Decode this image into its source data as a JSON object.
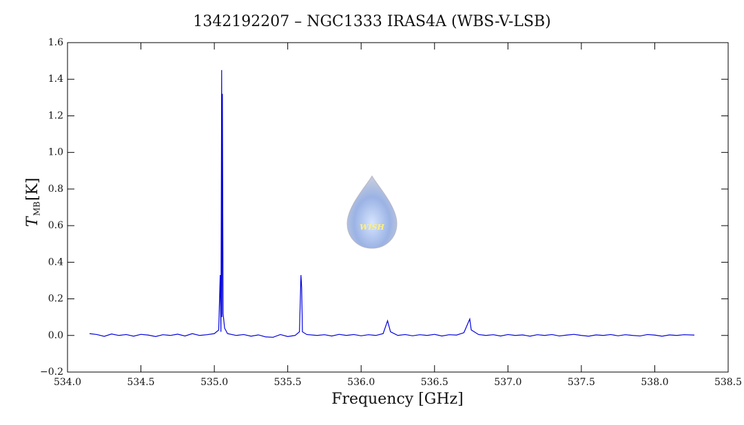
{
  "chart_data": {
    "type": "line",
    "title": "1342192207 – NGC1333 IRAS4A (WBS-V-LSB)",
    "xlabel": "Frequency [GHz]",
    "ylabel": {
      "symbol": "T",
      "subscript": "MB",
      "unit": "[K]"
    },
    "watermark": "WISH",
    "xlim": [
      534.0,
      538.5
    ],
    "xticks": [
      {
        "value": 534.0,
        "label": "534.0"
      },
      {
        "value": 534.5,
        "label": "534.5"
      },
      {
        "value": 535.0,
        "label": "535.0"
      },
      {
        "value": 535.5,
        "label": "535.5"
      },
      {
        "value": 536.0,
        "label": "536.0"
      },
      {
        "value": 536.5,
        "label": "536.5"
      },
      {
        "value": 537.0,
        "label": "537.0"
      },
      {
        "value": 537.5,
        "label": "537.5"
      },
      {
        "value": 538.0,
        "label": "538.0"
      },
      {
        "value": 538.5,
        "label": "538.5"
      }
    ],
    "ylim": [
      -0.2,
      1.6
    ],
    "yticks": [
      {
        "value": -0.2,
        "label": "−0.2"
      },
      {
        "value": 0,
        "label": "0.0"
      },
      0.2,
      0.4,
      0.6,
      0.8,
      {
        "value": 1,
        "label": "1.0"
      },
      1.2,
      1.4,
      1.6
    ],
    "series": [
      {
        "color": "#0000dd",
        "x": [
          534.15,
          534.2,
          534.25,
          534.3,
          534.35,
          534.4,
          534.45,
          534.5,
          534.55,
          534.6,
          534.65,
          534.7,
          534.75,
          534.8,
          534.85,
          534.9,
          534.95,
          535.0,
          535.03,
          535.04,
          535.045,
          535.05,
          535.052,
          535.055,
          535.06,
          535.07,
          535.09,
          535.15,
          535.2,
          535.25,
          535.3,
          535.35,
          535.4,
          535.45,
          535.5,
          535.55,
          535.58,
          535.59,
          535.595,
          535.6,
          535.63,
          535.7,
          535.75,
          535.8,
          535.85,
          535.9,
          535.95,
          536.0,
          536.05,
          536.1,
          536.15,
          536.18,
          536.2,
          536.25,
          536.3,
          536.35,
          536.4,
          536.45,
          536.5,
          536.55,
          536.6,
          536.65,
          536.7,
          536.74,
          536.75,
          536.8,
          536.85,
          536.9,
          536.95,
          537.0,
          537.05,
          537.1,
          537.15,
          537.2,
          537.25,
          537.3,
          537.35,
          537.4,
          537.45,
          537.5,
          537.55,
          537.6,
          537.65,
          537.7,
          537.75,
          537.8,
          537.85,
          537.9,
          537.95,
          538.0,
          538.05,
          538.1,
          538.15,
          538.2,
          538.27
        ],
        "values": [
          0.01,
          0.005,
          -0.005,
          0.008,
          0.0,
          0.005,
          -0.004,
          0.006,
          0.002,
          -0.006,
          0.004,
          0.0,
          0.007,
          -0.003,
          0.01,
          0.0,
          0.004,
          0.01,
          0.03,
          0.33,
          0.02,
          1.45,
          0.1,
          1.32,
          0.12,
          0.04,
          0.01,
          0.0,
          0.005,
          -0.004,
          0.003,
          -0.008,
          -0.01,
          0.005,
          -0.006,
          0.0,
          0.02,
          0.33,
          0.26,
          0.02,
          0.005,
          0.0,
          0.004,
          -0.003,
          0.006,
          0.0,
          0.005,
          -0.002,
          0.004,
          0.0,
          0.01,
          0.08,
          0.02,
          0.0,
          0.005,
          -0.002,
          0.004,
          0.0,
          0.006,
          -0.003,
          0.004,
          0.002,
          0.015,
          0.09,
          0.03,
          0.005,
          0.0,
          0.004,
          -0.003,
          0.005,
          0.0,
          0.003,
          -0.004,
          0.004,
          0.0,
          0.005,
          -0.003,
          0.002,
          0.006,
          0.0,
          -0.004,
          0.003,
          0.0,
          0.005,
          -0.002,
          0.004,
          0.0,
          -0.003,
          0.005,
          0.002,
          -0.004,
          0.003,
          0.0,
          0.004,
          0.002
        ]
      }
    ]
  }
}
